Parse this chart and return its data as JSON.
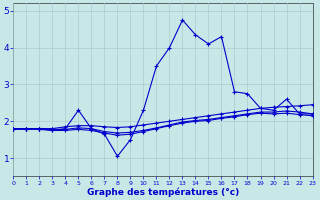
{
  "bg_color": "#c8e8e8",
  "grid_color": "#aacccc",
  "line_color": "#0000cc",
  "xlim": [
    0,
    23
  ],
  "ylim": [
    0.5,
    5.2
  ],
  "yticks": [
    1,
    2,
    3,
    4,
    5
  ],
  "xticks": [
    0,
    1,
    2,
    3,
    4,
    5,
    6,
    7,
    8,
    9,
    10,
    11,
    12,
    13,
    14,
    15,
    16,
    17,
    18,
    19,
    20,
    21,
    22,
    23
  ],
  "xlabel": "Graphe des températures (°c)",
  "series": [
    {
      "x": [
        0,
        1,
        2,
        3,
        4,
        5,
        6,
        7,
        8,
        9,
        10,
        11,
        12,
        13,
        14,
        15,
        16,
        17,
        18,
        19,
        20,
        21,
        22,
        23
      ],
      "y": [
        1.8,
        1.8,
        1.8,
        1.75,
        1.8,
        2.3,
        1.8,
        1.65,
        1.05,
        1.5,
        2.3,
        3.5,
        4.0,
        4.75,
        4.35,
        4.1,
        4.3,
        2.8,
        2.75,
        2.35,
        2.3,
        2.6,
        2.2,
        2.2
      ]
    },
    {
      "x": [
        0,
        1,
        2,
        3,
        4,
        5,
        6,
        7,
        8,
        9,
        10,
        11,
        12,
        13,
        14,
        15,
        16,
        17,
        18,
        19,
        20,
        21,
        22,
        23
      ],
      "y": [
        1.8,
        1.8,
        1.8,
        1.8,
        1.85,
        1.88,
        1.88,
        1.85,
        1.83,
        1.85,
        1.9,
        1.95,
        2.0,
        2.05,
        2.1,
        2.15,
        2.2,
        2.25,
        2.3,
        2.35,
        2.38,
        2.4,
        2.42,
        2.45
      ]
    },
    {
      "x": [
        0,
        1,
        2,
        3,
        4,
        5,
        6,
        7,
        8,
        9,
        10,
        11,
        12,
        13,
        14,
        15,
        16,
        17,
        18,
        19,
        20,
        21,
        22,
        23
      ],
      "y": [
        1.8,
        1.8,
        1.8,
        1.78,
        1.78,
        1.82,
        1.8,
        1.72,
        1.68,
        1.7,
        1.75,
        1.82,
        1.9,
        1.98,
        2.02,
        2.05,
        2.1,
        2.15,
        2.2,
        2.25,
        2.25,
        2.28,
        2.25,
        2.2
      ]
    },
    {
      "x": [
        0,
        1,
        2,
        3,
        4,
        5,
        6,
        7,
        8,
        9,
        10,
        11,
        12,
        13,
        14,
        15,
        16,
        17,
        18,
        19,
        20,
        21,
        22,
        23
      ],
      "y": [
        1.78,
        1.78,
        1.78,
        1.75,
        1.75,
        1.78,
        1.75,
        1.68,
        1.62,
        1.65,
        1.72,
        1.8,
        1.88,
        1.95,
        2.0,
        2.02,
        2.08,
        2.12,
        2.18,
        2.22,
        2.2,
        2.22,
        2.18,
        2.15
      ]
    }
  ]
}
